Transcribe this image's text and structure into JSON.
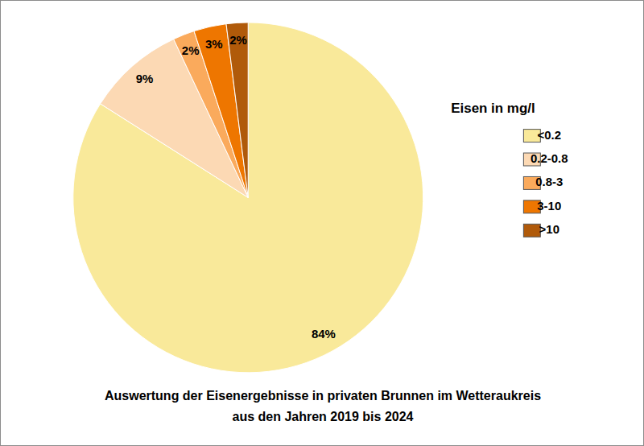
{
  "chart_data": {
    "type": "pie",
    "title": "Auswertung der Eisenergebnisse in privaten Brunnen im Wetteraukreis\naus den Jahren 2019 bis 2024",
    "legend_title": "Eisen in mg/l",
    "legend": "right",
    "categories": [
      "<0.2",
      "0.2-0.8",
      "0.8-3",
      "3-10",
      ">10"
    ],
    "values": [
      84,
      9,
      2,
      3,
      2
    ],
    "value_labels": [
      "84%",
      "9%",
      "2%",
      "3%",
      "2%"
    ],
    "data_labels": true,
    "colors": [
      "#F9E99A",
      "#FCD9B4",
      "#FAAA5C",
      "#EE7600",
      "#B05A0A"
    ]
  }
}
